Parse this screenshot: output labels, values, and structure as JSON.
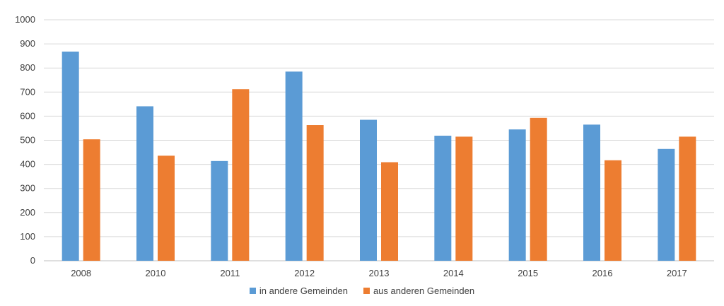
{
  "chart_data": {
    "type": "bar",
    "title": "",
    "xlabel": "",
    "ylabel": "",
    "categories": [
      "2008",
      "2010",
      "2011",
      "2012",
      "2013",
      "2014",
      "2015",
      "2016",
      "2017"
    ],
    "series": [
      {
        "name": "in andere Gemeinden",
        "color": "#5B9BD5",
        "values": [
          868,
          641,
          414,
          785,
          585,
          519,
          545,
          565,
          464
        ]
      },
      {
        "name": "aus anderen Gemeinden",
        "color": "#ED7D31",
        "values": [
          504,
          436,
          712,
          563,
          409,
          515,
          593,
          417,
          515
        ]
      }
    ],
    "ylim": [
      0,
      1000
    ],
    "yticks": [
      "0",
      "100",
      "200",
      "300",
      "400",
      "500",
      "600",
      "700",
      "800",
      "900",
      "1000"
    ],
    "grid": true,
    "legend_position": "bottom-center"
  }
}
